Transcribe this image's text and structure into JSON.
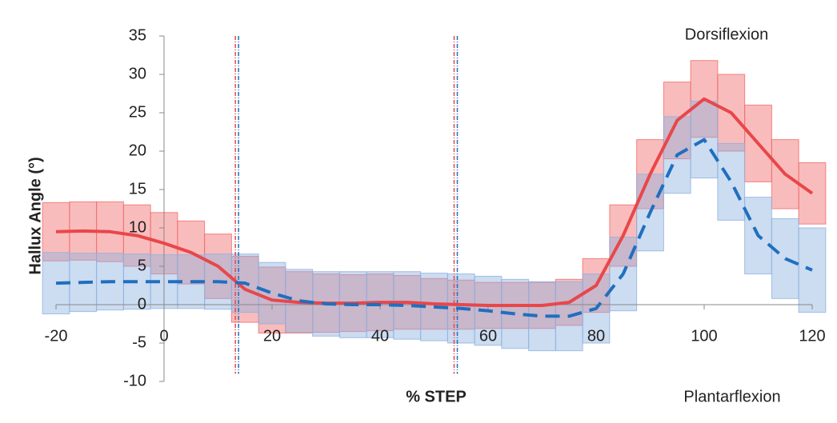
{
  "chart_data": {
    "type": "line",
    "xlabel": "% STEP",
    "ylabel": "Hallux Angle (°)",
    "annotations": [
      "Dorsiflexion",
      "Plantarflexion"
    ],
    "x": [
      -20,
      -15,
      -10,
      -5,
      0,
      5,
      10,
      15,
      20,
      25,
      30,
      35,
      40,
      45,
      50,
      55,
      60,
      65,
      70,
      75,
      80,
      85,
      90,
      95,
      100,
      105,
      110,
      115,
      120
    ],
    "series": [
      {
        "color": "#e8474a",
        "band_color": "#f26a6a",
        "dash": false,
        "values": [
          9.5,
          9.6,
          9.5,
          9,
          8,
          6.8,
          5,
          2,
          0.6,
          0.3,
          0.2,
          0.2,
          0.3,
          0.3,
          0.1,
          0,
          -0.1,
          -0.1,
          -0.1,
          0.3,
          2.5,
          9,
          17,
          24,
          26.8,
          25,
          21,
          17,
          14.5
        ],
        "error": [
          3.8,
          3.8,
          3.9,
          4,
          4,
          4.1,
          4.2,
          4.3,
          4.3,
          4,
          3.8,
          3.7,
          3.7,
          3.5,
          3.3,
          3.2,
          3,
          3,
          3,
          3,
          3.5,
          4,
          4.5,
          5,
          5,
          5,
          5,
          4.5,
          4
        ]
      },
      {
        "color": "#1f6fbf",
        "band_color": "#8fb2e0",
        "dash": true,
        "values": [
          2.8,
          2.9,
          3,
          3,
          3,
          3,
          3,
          2.8,
          1.5,
          0.5,
          0.1,
          0,
          0,
          -0.1,
          -0.3,
          -0.5,
          -0.8,
          -1.2,
          -1.5,
          -1.5,
          -0.5,
          4,
          12,
          19.5,
          21.5,
          16,
          9,
          6,
          4.5
        ],
        "error": [
          4,
          3.8,
          3.7,
          3.6,
          3.5,
          3.5,
          3.6,
          3.8,
          4,
          4.1,
          4.2,
          4.3,
          4.3,
          4.4,
          4.4,
          4.5,
          4.5,
          4.5,
          4.5,
          4.5,
          4.5,
          4.8,
          5,
          5,
          5,
          5,
          5,
          5.2,
          5.5
        ]
      }
    ],
    "vlines": [
      13.5,
      54
    ],
    "xlim": [
      -20,
      120
    ],
    "ylim": [
      -10,
      35
    ],
    "xticks": [
      -20,
      0,
      20,
      40,
      60,
      80,
      100,
      120
    ],
    "yticks": [
      -10,
      -5,
      0,
      5,
      10,
      15,
      20,
      25,
      30,
      35
    ]
  }
}
